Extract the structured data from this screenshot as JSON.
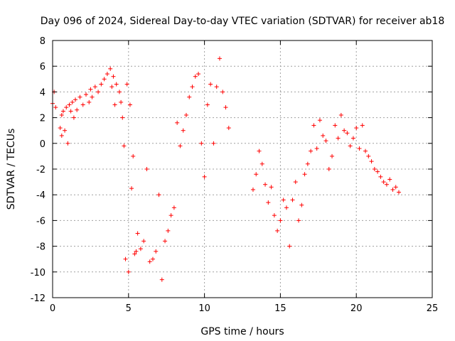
{
  "chart_data": {
    "type": "scatter",
    "title": "Day 096 of 2024, Sidereal Day-to-day VTEC variation (SDTVAR) for receiver ab18",
    "xlabel": "GPS time / hours",
    "ylabel": "SDTVAR / TECUs",
    "xlim": [
      0,
      25
    ],
    "ylim": [
      -12,
      8
    ],
    "xticks": [
      0,
      5,
      10,
      15,
      20,
      25
    ],
    "yticks": [
      -12,
      -10,
      -8,
      -6,
      -4,
      -2,
      0,
      2,
      4,
      6,
      8
    ],
    "grid": true,
    "marker": "+",
    "marker_color": "#ff0000",
    "series": [
      {
        "name": "SDTVAR",
        "x": [
          0.0,
          0.1,
          0.2,
          0.5,
          0.6,
          0.6,
          0.7,
          0.8,
          0.9,
          1.0,
          1.1,
          1.2,
          1.3,
          1.4,
          1.5,
          1.6,
          1.8,
          2.0,
          2.2,
          2.4,
          2.5,
          2.6,
          2.8,
          3.0,
          3.2,
          3.4,
          3.6,
          3.8,
          3.9,
          4.0,
          4.1,
          4.2,
          4.4,
          4.5,
          4.6,
          4.7,
          4.8,
          4.9,
          5.0,
          5.1,
          5.2,
          5.3,
          5.4,
          5.5,
          5.6,
          5.8,
          6.0,
          6.2,
          6.4,
          6.6,
          6.8,
          7.0,
          7.2,
          7.4,
          7.6,
          7.8,
          8.0,
          8.2,
          8.4,
          8.6,
          8.8,
          9.0,
          9.2,
          9.4,
          9.6,
          9.8,
          10.0,
          10.2,
          10.4,
          10.6,
          10.8,
          11.0,
          11.2,
          11.4,
          11.6,
          13.2,
          13.4,
          13.6,
          13.8,
          14.0,
          14.2,
          14.4,
          14.6,
          14.8,
          15.0,
          15.2,
          15.4,
          15.6,
          15.8,
          16.0,
          16.2,
          16.4,
          16.6,
          16.8,
          17.0,
          17.2,
          17.4,
          17.6,
          17.8,
          18.0,
          18.2,
          18.4,
          18.6,
          18.8,
          19.0,
          19.2,
          19.4,
          19.6,
          19.8,
          20.0,
          20.2,
          20.4,
          20.6,
          20.8,
          21.0,
          21.2,
          21.4,
          21.6,
          21.8,
          22.0,
          22.2,
          22.4,
          22.6,
          22.8
        ],
        "y": [
          3.1,
          4.0,
          2.8,
          1.2,
          2.2,
          0.6,
          2.5,
          1.0,
          2.8,
          0.0,
          3.0,
          2.5,
          3.2,
          2.0,
          3.4,
          2.6,
          3.6,
          3.0,
          3.8,
          3.2,
          4.2,
          3.6,
          4.4,
          4.0,
          4.6,
          5.0,
          5.4,
          5.8,
          4.4,
          5.2,
          3.0,
          4.6,
          4.0,
          3.2,
          2.0,
          -0.2,
          -9.0,
          4.6,
          -10.0,
          3.0,
          -3.5,
          -1.0,
          -8.6,
          -8.4,
          -7.0,
          -8.2,
          -7.6,
          -2.0,
          -9.2,
          -9.0,
          -8.4,
          -4.0,
          -10.6,
          -7.6,
          -6.8,
          -5.6,
          -5.0,
          1.6,
          -0.2,
          1.0,
          2.2,
          3.6,
          4.4,
          5.2,
          5.4,
          0.0,
          -2.6,
          3.0,
          4.6,
          0.0,
          4.4,
          6.6,
          4.0,
          2.8,
          1.2,
          -3.6,
          -2.4,
          -0.6,
          -1.6,
          -3.2,
          -4.6,
          -3.4,
          -5.6,
          -6.8,
          -6.0,
          -4.4,
          -5.0,
          -8.0,
          -4.4,
          -3.0,
          -6.0,
          -4.8,
          -2.4,
          -1.6,
          -0.6,
          1.4,
          -0.4,
          1.8,
          0.6,
          0.2,
          -2.0,
          -1.0,
          1.4,
          0.4,
          2.2,
          1.0,
          0.8,
          -0.2,
          0.4,
          1.2,
          -0.4,
          1.4,
          -0.6,
          -1.0,
          -1.4,
          -2.0,
          -2.2,
          -2.6,
          -3.0,
          -3.2,
          -2.8,
          -3.6,
          -3.4,
          -3.8
        ]
      }
    ]
  }
}
